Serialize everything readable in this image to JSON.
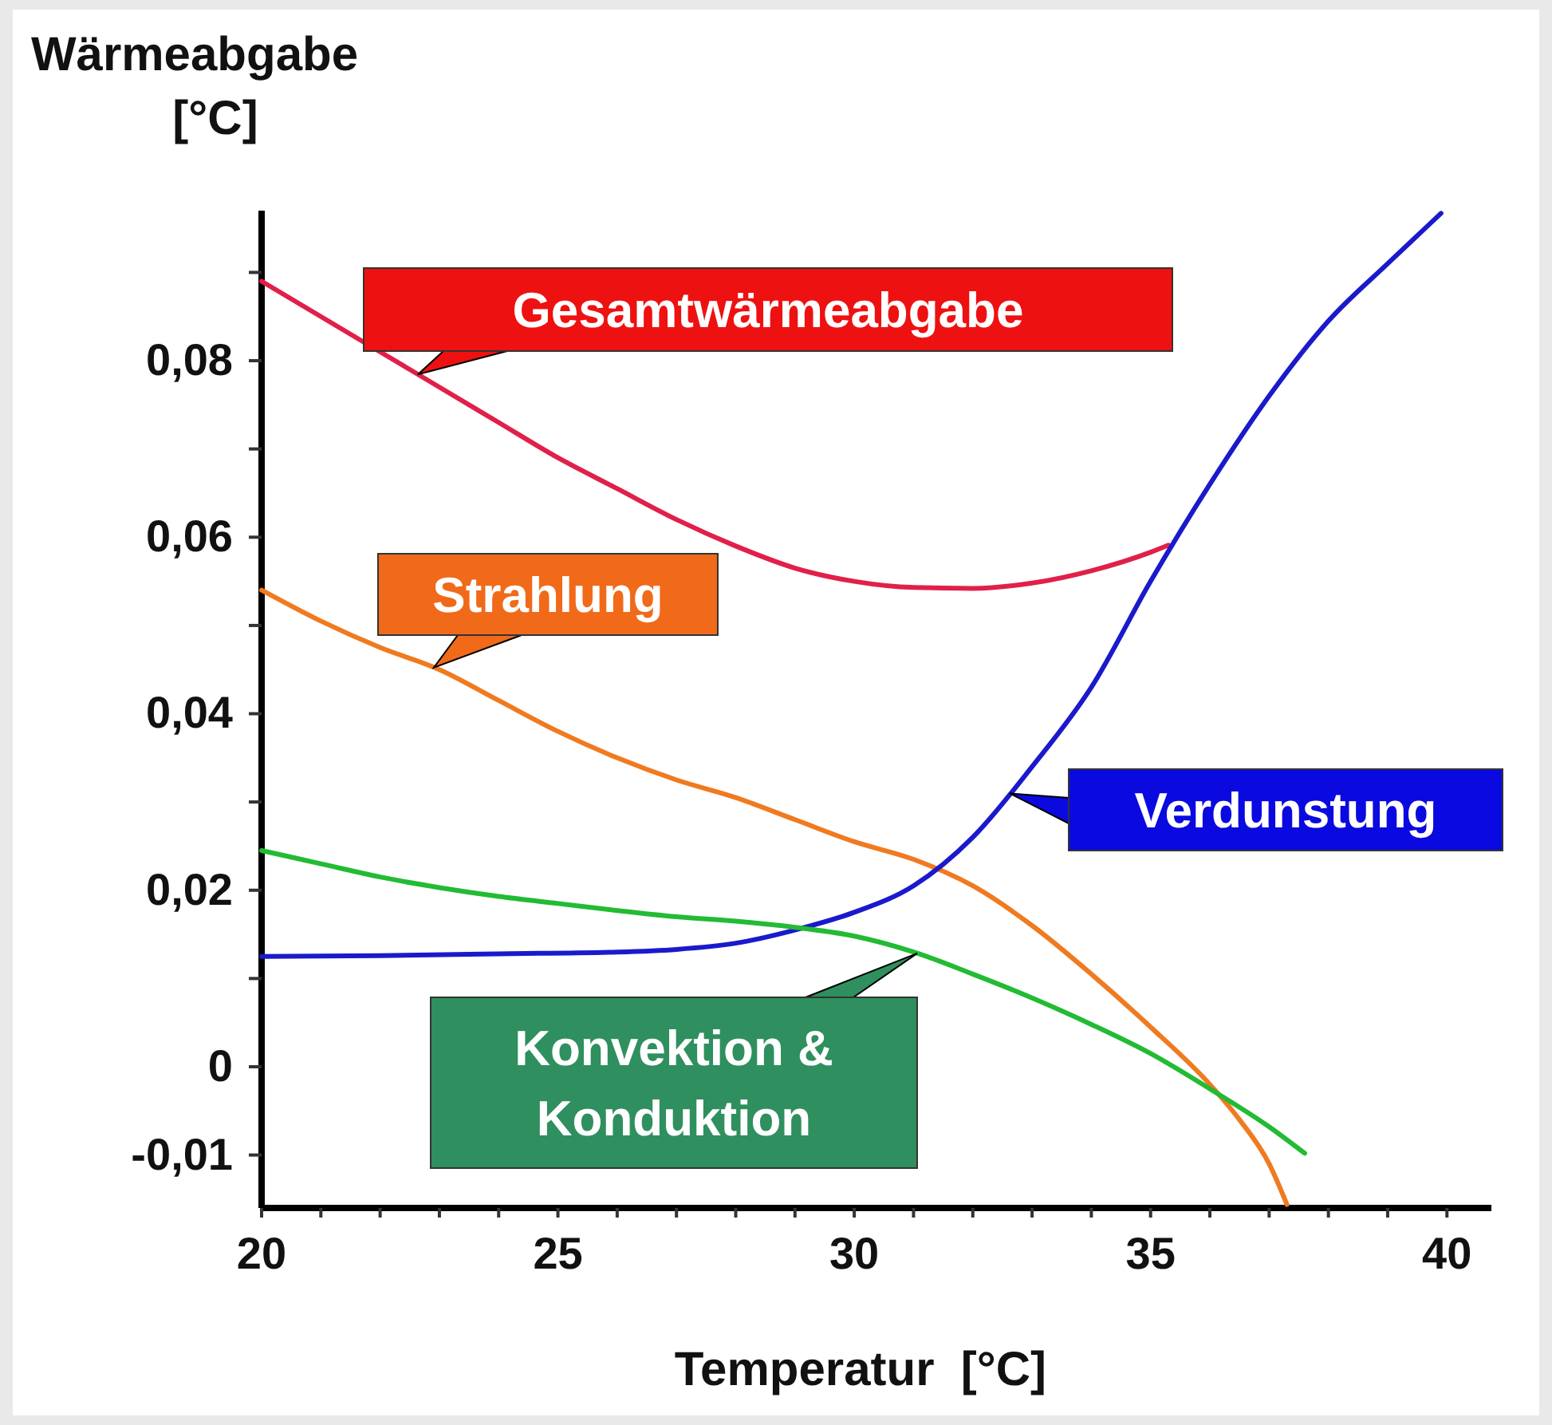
{
  "chart_data": {
    "type": "line",
    "ylabel": "Wärmeabgabe\n[°C]",
    "xlabel": "Temperatur  [°C]",
    "xlim": [
      20,
      40.75
    ],
    "ylim": [
      -0.016,
      0.097
    ],
    "xticks": [
      20,
      {
        "value": 21,
        "label": null
      },
      {
        "value": 22,
        "label": null
      },
      {
        "value": 23,
        "label": null
      },
      {
        "value": 24,
        "label": null
      },
      25,
      {
        "value": 26,
        "label": null
      },
      {
        "value": 27,
        "label": null
      },
      {
        "value": 28,
        "label": null
      },
      {
        "value": 29,
        "label": null
      },
      30,
      {
        "value": 31,
        "label": null
      },
      {
        "value": 32,
        "label": null
      },
      {
        "value": 33,
        "label": null
      },
      {
        "value": 34,
        "label": null
      },
      35,
      {
        "value": 36,
        "label": null
      },
      {
        "value": 37,
        "label": null
      },
      {
        "value": 38,
        "label": null
      },
      {
        "value": 39,
        "label": null
      },
      40
    ],
    "yticks": [
      {
        "value": -0.01,
        "label": "-0,01"
      },
      0,
      {
        "value": 0.01,
        "label": null
      },
      {
        "value": 0.02,
        "label": "0,02"
      },
      {
        "value": 0.03,
        "label": null
      },
      {
        "value": 0.04,
        "label": "0,04"
      },
      {
        "value": 0.05,
        "label": null
      },
      {
        "value": 0.06,
        "label": "0,06"
      },
      {
        "value": 0.07,
        "label": null
      },
      {
        "value": 0.08,
        "label": "0,08"
      },
      {
        "value": 0.09,
        "label": null
      }
    ],
    "grid": false,
    "marker": "none",
    "line_style": "solid",
    "series": [
      {
        "name": "Gesamtwärmeabgabe",
        "color": "#e0204a",
        "x": [
          20,
          21,
          22,
          23,
          24,
          25,
          26,
          27,
          28,
          29,
          30,
          31,
          32,
          33,
          34,
          35,
          35.3
        ],
        "values": [
          0.089,
          0.085,
          0.081,
          0.077,
          0.073,
          0.069,
          0.0655,
          0.062,
          0.059,
          0.0565,
          0.055,
          0.0543,
          0.0542,
          0.0548,
          0.0562,
          0.0583,
          0.0591
        ]
      },
      {
        "name": "Strahlung",
        "color": "#f07a20",
        "x": [
          20,
          21,
          22,
          23,
          24,
          25,
          26,
          27,
          28,
          29,
          30,
          31,
          32,
          33,
          34,
          35,
          36,
          36.5,
          37,
          37.3
        ],
        "values": [
          0.054,
          0.0505,
          0.0475,
          0.045,
          0.0415,
          0.038,
          0.035,
          0.0325,
          0.0305,
          0.028,
          0.0255,
          0.0235,
          0.0205,
          0.016,
          0.0105,
          0.0045,
          -0.002,
          -0.006,
          -0.011,
          -0.0156
        ]
      },
      {
        "name": "Verdunstung",
        "color": "#1a1acc",
        "x": [
          20,
          22,
          24,
          26,
          27,
          28,
          29,
          30,
          31,
          32,
          33,
          34,
          35,
          36,
          37,
          38,
          39,
          39.9
        ],
        "values": [
          0.0125,
          0.0126,
          0.0128,
          0.013,
          0.0133,
          0.014,
          0.0155,
          0.0175,
          0.0205,
          0.026,
          0.034,
          0.043,
          0.055,
          0.066,
          0.076,
          0.0845,
          0.091,
          0.0967
        ]
      },
      {
        "name": "Konvektion & Konduktion",
        "color": "#22bb33",
        "x": [
          20,
          21,
          22,
          23,
          24,
          25,
          26,
          27,
          28,
          29,
          30,
          31,
          32,
          33,
          34,
          35,
          36,
          37,
          37.6
        ],
        "values": [
          0.0245,
          0.023,
          0.0215,
          0.0203,
          0.0193,
          0.0185,
          0.0177,
          0.017,
          0.0165,
          0.0158,
          0.0148,
          0.013,
          0.0105,
          0.0078,
          0.0048,
          0.0015,
          -0.0025,
          -0.0068,
          -0.0098
        ]
      }
    ]
  }
}
